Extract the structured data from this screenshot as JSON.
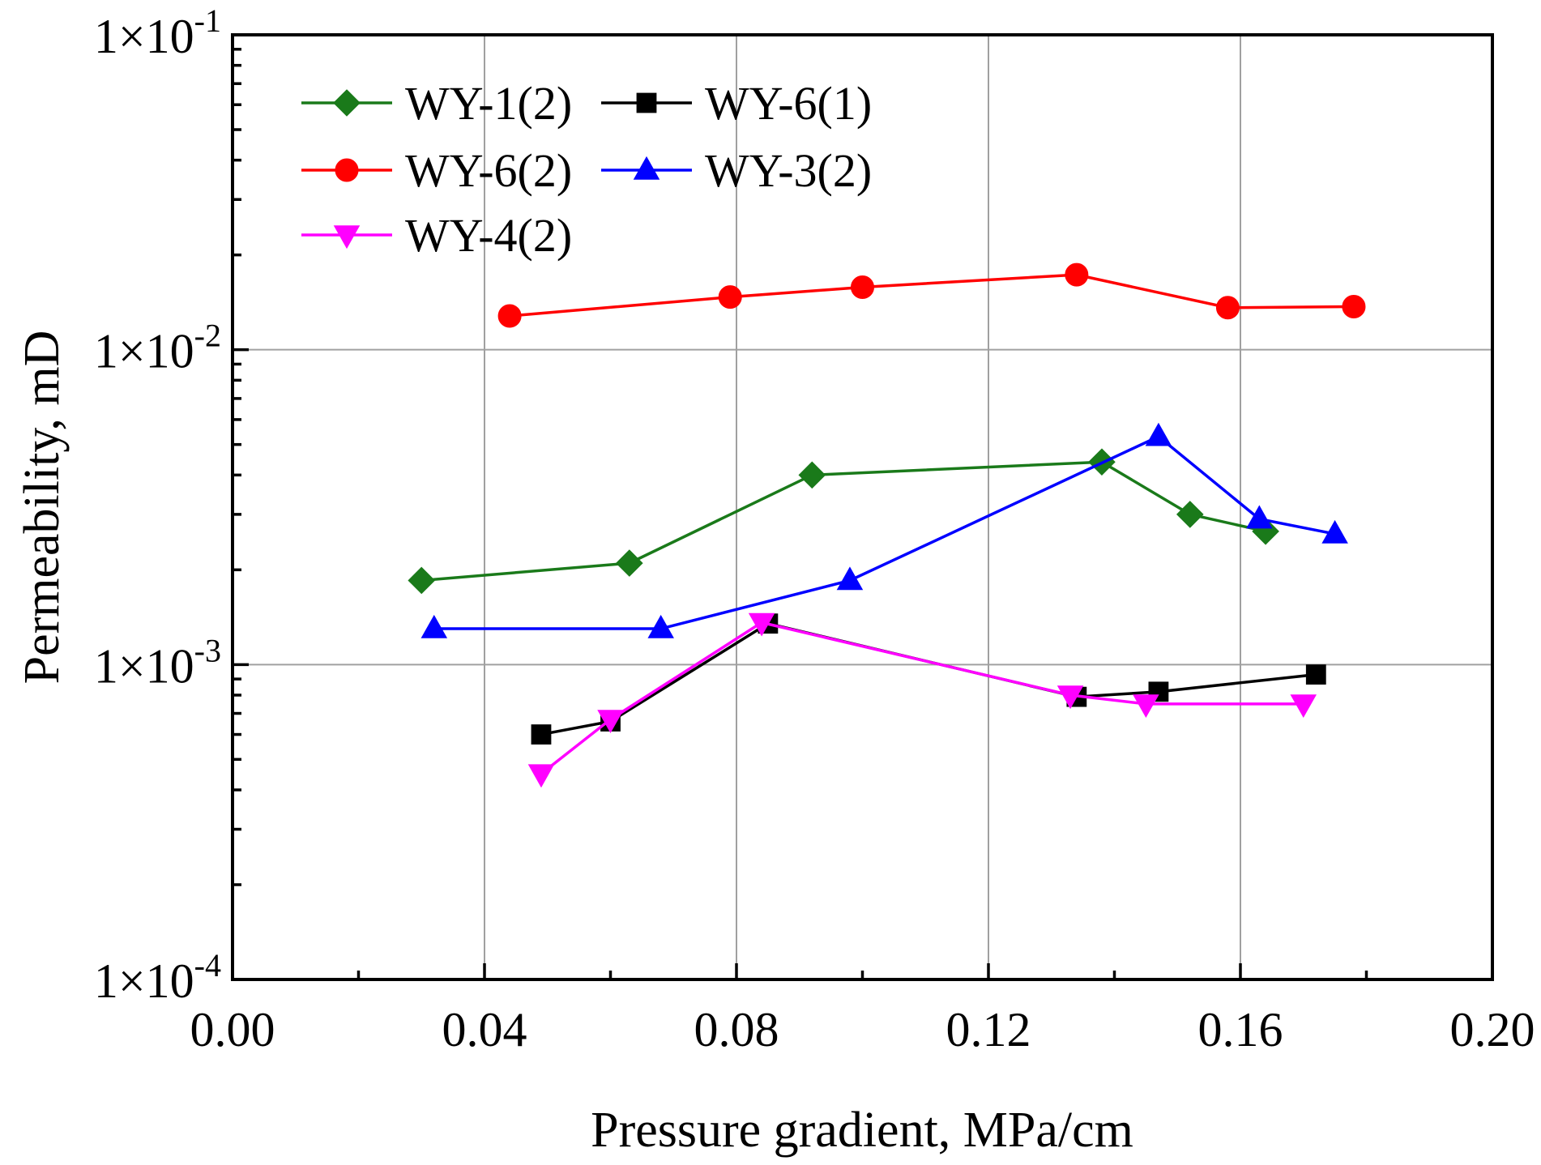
{
  "chart_data": {
    "type": "line",
    "title": "",
    "xlabel": "Pressure gradient, MPa/cm",
    "ylabel": "Permeability, mD",
    "xlim": [
      0.0,
      0.2
    ],
    "ylim": [
      0.0001,
      0.1
    ],
    "yscale": "log",
    "grid": true,
    "legend_position": "top-left",
    "x_ticks": [
      {
        "value": 0.0,
        "label": "0.00"
      },
      {
        "value": 0.04,
        "label": "0.04"
      },
      {
        "value": 0.08,
        "label": "0.08"
      },
      {
        "value": 0.12,
        "label": "0.12"
      },
      {
        "value": 0.16,
        "label": "0.16"
      },
      {
        "value": 0.2,
        "label": "0.20"
      }
    ],
    "y_ticks": [
      {
        "value": 0.0001,
        "mantissa": "1×10",
        "exponent": "-4"
      },
      {
        "value": 0.001,
        "mantissa": "1×10",
        "exponent": "-3"
      },
      {
        "value": 0.01,
        "mantissa": "1×10",
        "exponent": "-2"
      },
      {
        "value": 0.1,
        "mantissa": "1×10",
        "exponent": "-1"
      }
    ],
    "series": [
      {
        "name": "WY-1(2)",
        "color": "#1a7a1a",
        "marker": "diamond",
        "x": [
          0.03,
          0.063,
          0.092,
          0.138,
          0.152,
          0.164
        ],
        "y": [
          0.00185,
          0.0021,
          0.004,
          0.0044,
          0.003,
          0.00265
        ]
      },
      {
        "name": "WY-6(1)",
        "color": "#000000",
        "marker": "square",
        "x": [
          0.049,
          0.06,
          0.085,
          0.134,
          0.147,
          0.172
        ],
        "y": [
          0.0006,
          0.00066,
          0.00135,
          0.00079,
          0.00082,
          0.00093
        ]
      },
      {
        "name": "WY-6(2)",
        "color": "#ff0000",
        "marker": "circle",
        "x": [
          0.044,
          0.079,
          0.1,
          0.134,
          0.158,
          0.178
        ],
        "y": [
          0.0128,
          0.0147,
          0.0158,
          0.0173,
          0.0136,
          0.0137
        ]
      },
      {
        "name": "WY-3(2)",
        "color": "#0000ff",
        "marker": "triangle-up",
        "x": [
          0.032,
          0.068,
          0.098,
          0.147,
          0.163,
          0.175
        ],
        "y": [
          0.0013,
          0.0013,
          0.00185,
          0.0053,
          0.0029,
          0.0026
        ]
      },
      {
        "name": "WY-4(2)",
        "color": "#ff00ff",
        "marker": "triangle-down",
        "x": [
          0.049,
          0.06,
          0.084,
          0.133,
          0.145,
          0.17
        ],
        "y": [
          0.00045,
          0.00067,
          0.00136,
          0.0008,
          0.00075,
          0.00075
        ]
      }
    ]
  }
}
